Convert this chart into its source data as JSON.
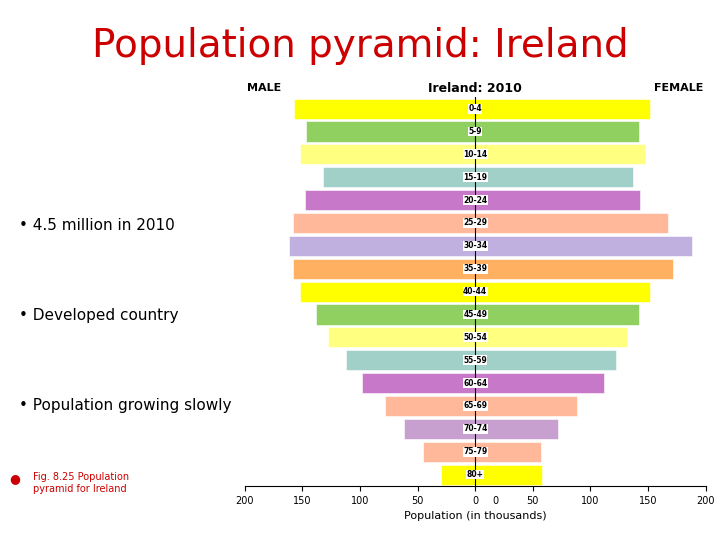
{
  "title": "Population pyramid: Ireland",
  "chart_title": "Ireland: 2010",
  "xlabel": "Population (in thousands)",
  "male_label": "MALE",
  "female_label": "FEMALE",
  "age_groups": [
    "80+",
    "75-79",
    "70-74",
    "65-69",
    "60-64",
    "55-59",
    "50-54",
    "45-49",
    "40-44",
    "35-39",
    "30-34",
    "25-29",
    "20-24",
    "15-19",
    "10-14",
    "5-9",
    "0-4"
  ],
  "male_values": [
    30,
    45,
    62,
    78,
    98,
    112,
    128,
    138,
    152,
    158,
    162,
    158,
    148,
    132,
    152,
    147,
    157
  ],
  "female_values": [
    58,
    57,
    72,
    88,
    112,
    122,
    132,
    142,
    152,
    172,
    188,
    167,
    143,
    137,
    147,
    142,
    152
  ],
  "colors": [
    "#ffff00",
    "#ffb899",
    "#c8a0d0",
    "#ffb899",
    "#c878c8",
    "#a0d0c8",
    "#ffff80",
    "#90d060",
    "#ffff00",
    "#ffb060",
    "#c0b0e0",
    "#ffb899",
    "#c878c8",
    "#a0d0c8",
    "#ffff80",
    "#90d060",
    "#ffff00"
  ],
  "xlim": 200,
  "bullet_points": [
    "4.5 million in 2010",
    "Developed country",
    "Population growing slowly"
  ],
  "fig_caption_bullet": "♥",
  "fig_caption_text": "Fig. 8.25 Population\npyramid for Ireland",
  "title_color": "#cc0000",
  "title_fontsize": 28,
  "background_color": "#ffffff"
}
